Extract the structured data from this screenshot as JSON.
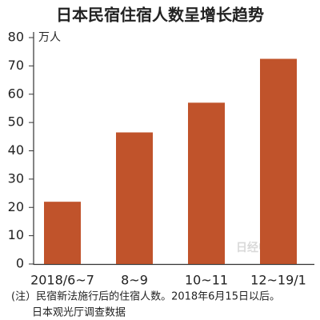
{
  "chart_data": {
    "type": "bar",
    "title": "日本民宿住宿人数呈增长趋势",
    "y_unit": "万人",
    "categories": [
      "2018/6~7",
      "8~9",
      "10~11",
      "12~19/1"
    ],
    "values": [
      22,
      46.5,
      57,
      72.5
    ],
    "color": "#c0532b",
    "ylim": [
      0,
      80
    ],
    "yticks": [
      0,
      10,
      20,
      30,
      40,
      50,
      60,
      70,
      80
    ],
    "watermark": "日经中文网",
    "notes": [
      "(注）民宿新法施行后的住宿人数。2018年6月15日以后。",
      "日本观光厅调查数据"
    ]
  }
}
